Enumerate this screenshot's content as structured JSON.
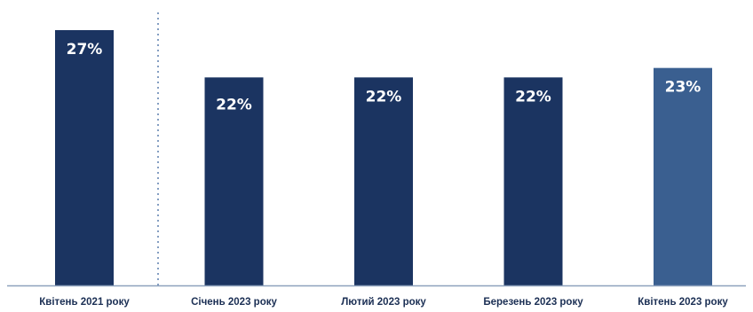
{
  "chart_data": {
    "type": "bar",
    "title": "",
    "xlabel": "",
    "ylabel": "",
    "ylim": [
      0,
      30
    ],
    "categories": [
      "Квітень 2021 року",
      "Січень 2023 року",
      "Лютий 2023 року",
      "Березень 2023 року",
      "Квітень 2023 року"
    ],
    "values": [
      27,
      22,
      22,
      22,
      23
    ],
    "data_labels": [
      "27%",
      "22%",
      "22%",
      "22%",
      "23%"
    ],
    "bar_colors": [
      "#1b3461",
      "#1b3461",
      "#1b3461",
      "#1b3461",
      "#3a5f90"
    ],
    "axis_color": "#8ea1bd",
    "separator": "dotted vertical line after first category",
    "grid": false,
    "legend": "none"
  }
}
